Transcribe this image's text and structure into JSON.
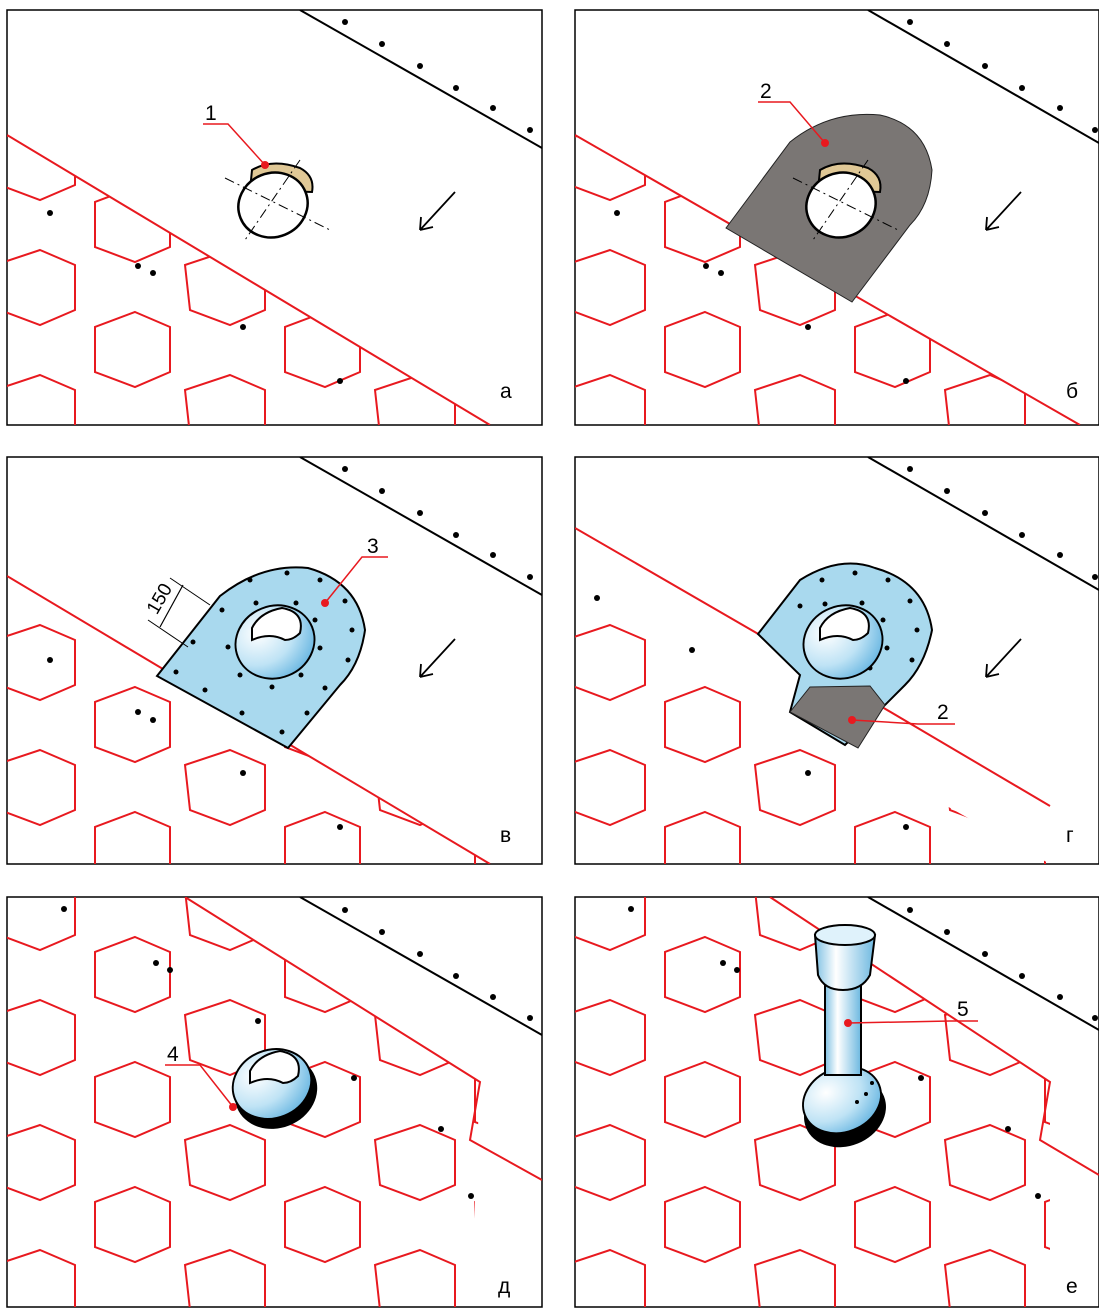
{
  "colors": {
    "tile_lines": "#e8191f",
    "ridge_line": "#000000",
    "membrane": "#7a7674",
    "sealant_pad": "#a9d9ee",
    "sealant_pad_light": "#dff2fb",
    "penetration_ring": "#e0c896",
    "vent_light": "#ffffff",
    "vent_dark": "#7fc1e3",
    "leader_dot": "#e8191f"
  },
  "panels": [
    {
      "letter": "а"
    },
    {
      "letter": "б"
    },
    {
      "letter": "в"
    },
    {
      "letter": "г"
    },
    {
      "letter": "д"
    },
    {
      "letter": "е"
    }
  ],
  "callouts": {
    "pipe_opening": "1",
    "membrane": "2",
    "membrane_repeat": "2",
    "sealant_pad": "3",
    "base_flange": "4",
    "vent_pipe": "5"
  },
  "dimension": {
    "overlap": "150"
  },
  "icons": {
    "slope_direction": "arrow-down-left-icon",
    "nail_dot": "dot-icon"
  }
}
